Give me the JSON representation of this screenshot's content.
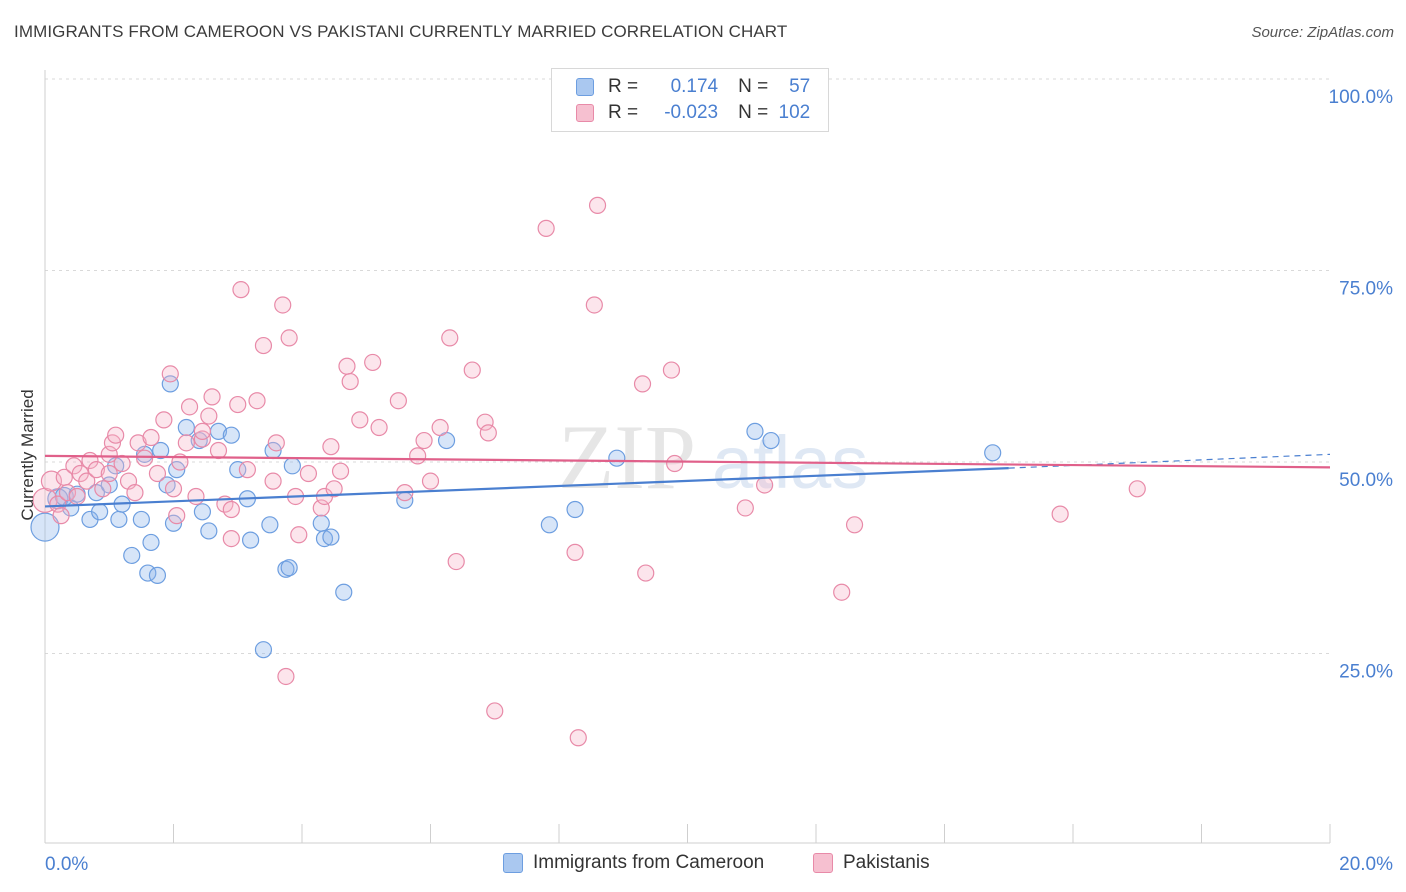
{
  "title": "IMMIGRANTS FROM CAMEROON VS PAKISTANI CURRENTLY MARRIED CORRELATION CHART",
  "source": "Source: ZipAtlas.com",
  "watermark": {
    "zip": "ZIP",
    "atlas": "atlas"
  },
  "legend": {
    "r_label": "R =",
    "n_label": "N =",
    "rows": [
      {
        "r": "0.174",
        "n": "57",
        "fill": "#aac8f0",
        "stroke": "#6d9ee0"
      },
      {
        "r": "-0.023",
        "n": "102",
        "fill": "#f6c0d0",
        "stroke": "#e88aa8"
      }
    ]
  },
  "chart_data": {
    "type": "scatter",
    "ylabel": "Currently Married",
    "xlim": [
      0,
      20
    ],
    "ylim": [
      0,
      105
    ],
    "x_tick_labels": [
      "0.0%",
      "20.0%"
    ],
    "y_ticks": [
      25,
      50,
      75,
      100
    ],
    "y_tick_labels": [
      "25.0%",
      "50.0%",
      "75.0%",
      "100.0%"
    ],
    "grid": true,
    "colors": {
      "blue": "#4a7fd0",
      "pink": "#e0608a",
      "axis_label": "#4a7fd0"
    },
    "series": [
      {
        "name": "Immigrants from Cameroon",
        "color": "#6d9ee0",
        "fill": "rgba(140,180,235,0.35)",
        "trend": {
          "x0": 0,
          "y0": 44.2,
          "x1": 15,
          "y1": 49.2,
          "dashed_to_x": 20,
          "dashed_to_y": 51.0
        },
        "points": [
          [
            0.0,
            41.5,
            14
          ],
          [
            0.2,
            45.2,
            10
          ],
          [
            0.3,
            45.5,
            9
          ],
          [
            0.4,
            44.0,
            8
          ],
          [
            0.5,
            45.8,
            8
          ],
          [
            0.7,
            42.5,
            8
          ],
          [
            0.8,
            46.0,
            8
          ],
          [
            0.85,
            43.5,
            8
          ],
          [
            1.0,
            47.0,
            8
          ],
          [
            1.1,
            49.5,
            8
          ],
          [
            1.15,
            42.5,
            8
          ],
          [
            1.2,
            44.5,
            8
          ],
          [
            1.35,
            37.8,
            8
          ],
          [
            1.5,
            42.5,
            8
          ],
          [
            1.55,
            51.0,
            8
          ],
          [
            1.6,
            35.5,
            8
          ],
          [
            1.65,
            39.5,
            8
          ],
          [
            1.75,
            35.2,
            8
          ],
          [
            1.8,
            51.5,
            8
          ],
          [
            1.9,
            47.0,
            8
          ],
          [
            1.95,
            60.2,
            8
          ],
          [
            2.0,
            42.0,
            8
          ],
          [
            2.05,
            49.0,
            8
          ],
          [
            2.2,
            54.5,
            8
          ],
          [
            2.4,
            52.8,
            8
          ],
          [
            2.45,
            43.5,
            8
          ],
          [
            2.55,
            41.0,
            8
          ],
          [
            2.7,
            54.0,
            8
          ],
          [
            2.9,
            53.5,
            8
          ],
          [
            3.0,
            49.0,
            8
          ],
          [
            3.15,
            45.2,
            8
          ],
          [
            3.2,
            39.8,
            8
          ],
          [
            3.4,
            25.5,
            8
          ],
          [
            3.5,
            41.8,
            8
          ],
          [
            3.55,
            51.5,
            8
          ],
          [
            3.75,
            36.0,
            8
          ],
          [
            3.8,
            36.2,
            8
          ],
          [
            3.85,
            49.5,
            8
          ],
          [
            4.3,
            42.0,
            8
          ],
          [
            4.35,
            40.0,
            8
          ],
          [
            4.45,
            40.2,
            8
          ],
          [
            4.65,
            33.0,
            8
          ],
          [
            5.6,
            45.0,
            8
          ],
          [
            6.25,
            52.8,
            8
          ],
          [
            7.85,
            41.8,
            8
          ],
          [
            8.25,
            43.8,
            8
          ],
          [
            8.9,
            50.5,
            8
          ],
          [
            11.05,
            54.0,
            8
          ],
          [
            11.3,
            52.8,
            8
          ],
          [
            14.75,
            51.2,
            8
          ]
        ]
      },
      {
        "name": "Pakistanis",
        "color": "#e88aa8",
        "fill": "rgba(245,180,200,0.35)",
        "trend": {
          "x0": 0,
          "y0": 50.8,
          "x1": 20,
          "y1": 49.3
        },
        "points": [
          [
            0.0,
            45.0,
            12
          ],
          [
            0.1,
            47.5,
            10
          ],
          [
            0.2,
            44.5,
            8
          ],
          [
            0.3,
            48.0,
            8
          ],
          [
            0.35,
            46.0,
            8
          ],
          [
            0.45,
            49.5,
            8
          ],
          [
            0.5,
            45.5,
            8
          ],
          [
            0.55,
            48.5,
            8
          ],
          [
            0.65,
            47.5,
            8
          ],
          [
            0.7,
            50.2,
            8
          ],
          [
            0.8,
            49.0,
            8
          ],
          [
            0.9,
            46.5,
            8
          ],
          [
            1.0,
            51.0,
            8
          ],
          [
            1.05,
            52.5,
            8
          ],
          [
            1.1,
            53.5,
            8
          ],
          [
            1.2,
            49.8,
            8
          ],
          [
            1.3,
            47.5,
            8
          ],
          [
            1.4,
            46.0,
            8
          ],
          [
            1.45,
            52.5,
            8
          ],
          [
            1.55,
            50.5,
            8
          ],
          [
            1.65,
            53.2,
            8
          ],
          [
            1.75,
            48.5,
            8
          ],
          [
            1.85,
            55.5,
            8
          ],
          [
            1.95,
            61.5,
            8
          ],
          [
            2.0,
            46.5,
            8
          ],
          [
            2.05,
            43.0,
            8
          ],
          [
            2.1,
            50.0,
            8
          ],
          [
            2.2,
            52.5,
            8
          ],
          [
            2.25,
            57.2,
            8
          ],
          [
            2.35,
            45.5,
            8
          ],
          [
            2.45,
            53.0,
            8
          ],
          [
            2.55,
            56.0,
            8
          ],
          [
            2.6,
            58.5,
            8
          ],
          [
            2.7,
            51.5,
            8
          ],
          [
            2.8,
            44.5,
            8
          ],
          [
            2.9,
            40.0,
            8
          ],
          [
            3.0,
            57.5,
            8
          ],
          [
            3.05,
            72.5,
            8
          ],
          [
            3.15,
            49.0,
            8
          ],
          [
            3.3,
            58.0,
            8
          ],
          [
            3.4,
            65.2,
            8
          ],
          [
            3.55,
            47.5,
            8
          ],
          [
            3.6,
            52.5,
            8
          ],
          [
            3.7,
            70.5,
            8
          ],
          [
            3.8,
            66.2,
            8
          ],
          [
            3.9,
            45.5,
            8
          ],
          [
            3.95,
            40.5,
            8
          ],
          [
            4.1,
            48.5,
            8
          ],
          [
            4.3,
            44.0,
            8
          ],
          [
            4.35,
            45.5,
            8
          ],
          [
            4.45,
            52.0,
            8
          ],
          [
            4.6,
            48.8,
            8
          ],
          [
            4.7,
            62.5,
            8
          ],
          [
            4.75,
            60.5,
            8
          ],
          [
            4.9,
            55.5,
            8
          ],
          [
            5.1,
            63.0,
            8
          ],
          [
            5.2,
            54.5,
            8
          ],
          [
            5.5,
            58.0,
            8
          ],
          [
            5.6,
            46.0,
            8
          ],
          [
            5.8,
            50.8,
            8
          ],
          [
            5.9,
            52.8,
            8
          ],
          [
            6.0,
            47.5,
            8
          ],
          [
            6.15,
            54.5,
            8
          ],
          [
            6.3,
            66.2,
            8
          ],
          [
            6.4,
            37.0,
            8
          ],
          [
            6.65,
            62.0,
            8
          ],
          [
            6.85,
            55.2,
            8
          ],
          [
            6.9,
            53.8,
            8
          ],
          [
            7.0,
            17.5,
            8
          ],
          [
            7.8,
            80.5,
            8
          ],
          [
            8.25,
            38.2,
            8
          ],
          [
            8.3,
            14.0,
            8
          ],
          [
            8.55,
            70.5,
            8
          ],
          [
            8.6,
            83.5,
            8
          ],
          [
            9.3,
            60.2,
            8
          ],
          [
            9.35,
            35.5,
            8
          ],
          [
            9.75,
            62.0,
            8
          ],
          [
            9.8,
            49.8,
            8
          ],
          [
            10.9,
            44.0,
            8
          ],
          [
            11.2,
            47.0,
            8
          ],
          [
            12.4,
            33.0,
            8
          ],
          [
            12.6,
            41.8,
            8
          ],
          [
            15.8,
            43.2,
            8
          ],
          [
            17.0,
            46.5,
            8
          ],
          [
            3.75,
            22.0,
            8
          ],
          [
            2.9,
            43.8,
            8
          ],
          [
            4.5,
            46.5,
            8
          ],
          [
            0.25,
            43.0,
            8
          ],
          [
            1.0,
            48.5,
            8
          ],
          [
            2.45,
            54.0,
            8
          ]
        ]
      }
    ]
  }
}
